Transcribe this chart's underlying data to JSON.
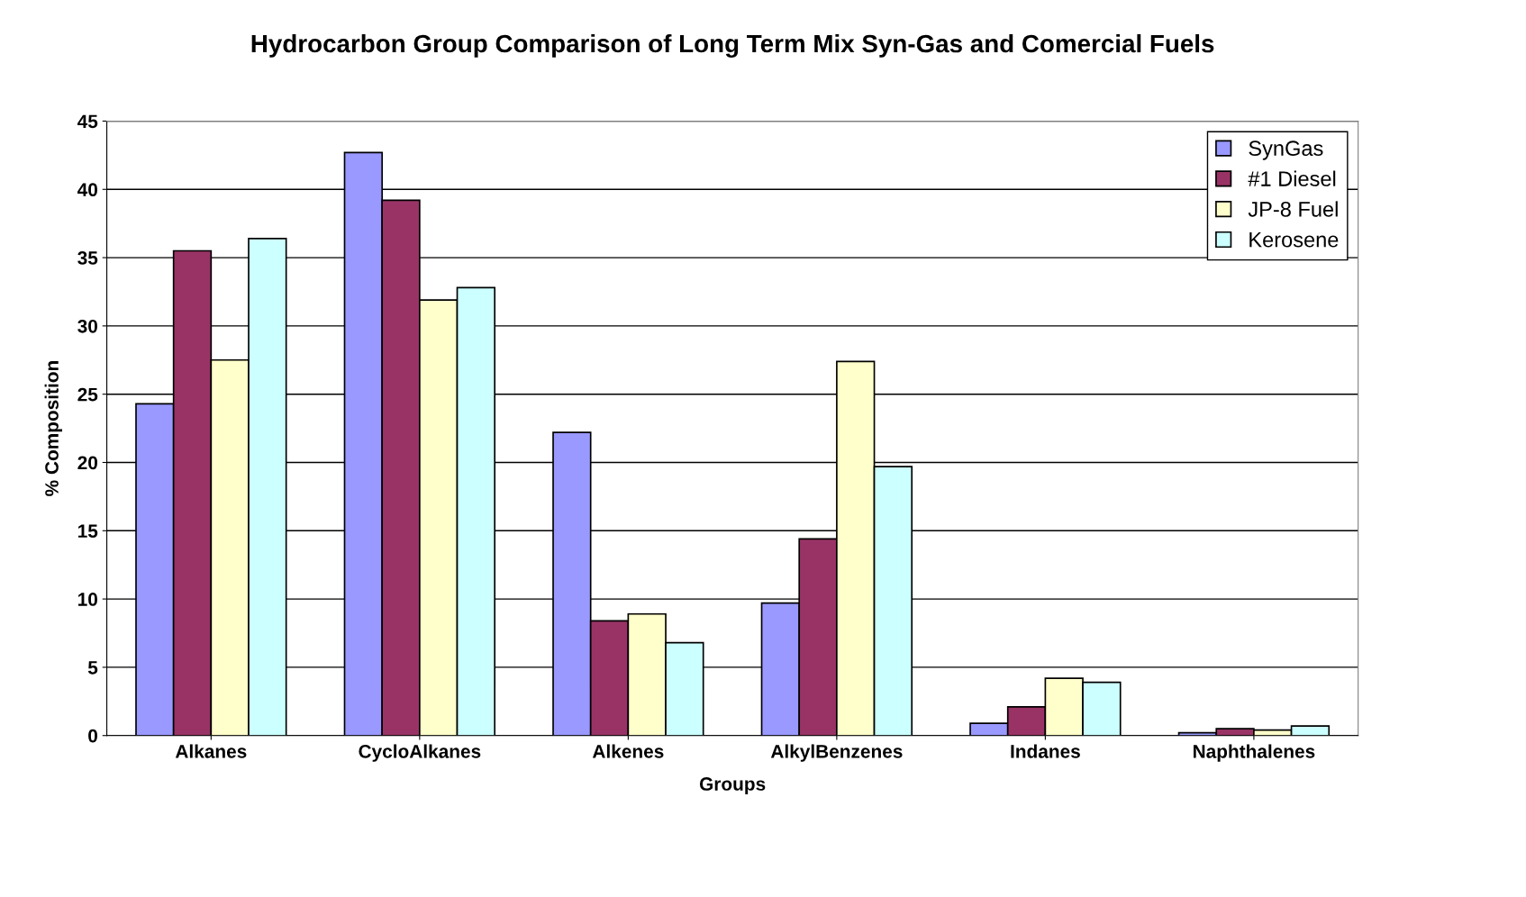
{
  "chart_data": {
    "type": "bar",
    "title": "Hydrocarbon Group Comparison of Long Term Mix Syn-Gas and Comercial Fuels",
    "xlabel": "Groups",
    "ylabel": "% Composition",
    "categories": [
      "Alkanes",
      "CycloAlkanes",
      "Alkenes",
      "AlkylBenzenes",
      "Indanes",
      "Naphthalenes"
    ],
    "series": [
      {
        "name": "SynGas",
        "color": "#9999ff",
        "values": [
          24.3,
          42.7,
          22.2,
          9.7,
          0.9,
          0.2
        ]
      },
      {
        "name": "#1 Diesel",
        "color": "#993366",
        "values": [
          35.5,
          39.2,
          8.4,
          14.4,
          2.1,
          0.5
        ]
      },
      {
        "name": "JP-8 Fuel",
        "color": "#ffffcc",
        "values": [
          27.5,
          31.9,
          8.9,
          27.4,
          4.2,
          0.4
        ]
      },
      {
        "name": "Kerosene",
        "color": "#ccffff",
        "values": [
          36.4,
          32.8,
          6.8,
          19.7,
          3.9,
          0.7
        ]
      }
    ],
    "ylim": [
      0,
      45
    ],
    "yticks": [
      0,
      5,
      10,
      15,
      20,
      25,
      30,
      35,
      40,
      45
    ],
    "grid": "y",
    "legend": "top right"
  }
}
